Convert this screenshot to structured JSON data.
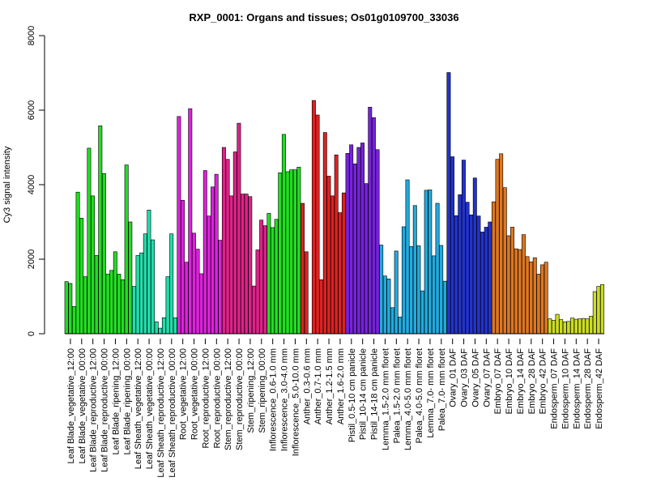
{
  "chart_data": {
    "type": "bar",
    "title": "RXP_0001: Organs and tissues; Os01g0109700_33036",
    "xlabel": "",
    "ylabel": "Cy3 signal intensity",
    "ylim": [
      0,
      8000
    ],
    "yticks": [
      0,
      2000,
      4000,
      6000,
      8000
    ],
    "grid": false,
    "legend": "none",
    "groups": [
      {
        "label": "Leaf Blade_vegetative_12:00",
        "color": "#22dd22",
        "values": [
          1400,
          1350,
          730
        ]
      },
      {
        "label": "Leaf Blade_vegetative_00:00",
        "color": "#22dd22",
        "values": [
          3800,
          3100,
          1530
        ]
      },
      {
        "label": "Leaf Blade_reproductive_12:00",
        "color": "#22dd22",
        "values": [
          4980,
          3700,
          2100
        ]
      },
      {
        "label": "Leaf Blade_reproductive_00:00",
        "color": "#22dd22",
        "values": [
          5580,
          4300,
          1600
        ]
      },
      {
        "label": "Leaf Blade_ripening_12:00",
        "color": "#22dd22",
        "values": [
          1700,
          2200,
          1600
        ]
      },
      {
        "label": "Leaf Blade_ripening_00:00",
        "color": "#22dd22",
        "values": [
          1450,
          4530,
          3000
        ]
      },
      {
        "label": "Leaf Sheath_vegetative_12:00",
        "color": "#22ddaa",
        "values": [
          1270,
          2100,
          2170
        ]
      },
      {
        "label": "Leaf Sheath_vegetative_00:00",
        "color": "#22ddaa",
        "values": [
          2680,
          3320,
          2520
        ]
      },
      {
        "label": "Leaf Sheath_reproductive_12:00",
        "color": "#22ddaa",
        "values": [
          320,
          150,
          430
        ]
      },
      {
        "label": "Leaf Sheath_reproductive_00:00",
        "color": "#22ddaa",
        "values": [
          1530,
          2680,
          430
        ]
      },
      {
        "label": "Root_vegetative_12:00",
        "color": "#dd22dd",
        "values": [
          5830,
          3580,
          1920
        ]
      },
      {
        "label": "Root_vegetative_00:00",
        "color": "#dd22dd",
        "values": [
          6040,
          2700,
          2270
        ]
      },
      {
        "label": "Root_reproductive_12:00",
        "color": "#dd22dd",
        "values": [
          1610,
          4380,
          3160
        ]
      },
      {
        "label": "Root_reproductive_00:00",
        "color": "#dd22dd",
        "values": [
          3940,
          4280,
          2510
        ]
      },
      {
        "label": "Stem_reproductive_12:00",
        "color": "#dd2288",
        "values": [
          5000,
          4680,
          3700
        ]
      },
      {
        "label": "Stem_reproductive_00:00",
        "color": "#dd2288",
        "values": [
          4880,
          5650,
          3750
        ]
      },
      {
        "label": "Stem_ripening_12:00",
        "color": "#dd2288",
        "values": [
          3750,
          3680,
          1280
        ]
      },
      {
        "label": "Stem_ripening_00:00",
        "color": "#dd2288",
        "values": [
          2250,
          3050,
          2900
        ]
      },
      {
        "label": "Inflorescence_0.6-1.0 mm",
        "color": "#22dd22",
        "values": [
          3230,
          2850,
          3070
        ]
      },
      {
        "label": "Inflorescence_3.0-4.0 mm",
        "color": "#22dd22",
        "values": [
          4320,
          5350,
          4350
        ]
      },
      {
        "label": "Inflorescence_5.0-10.0 mm",
        "color": "#22dd22",
        "values": [
          4400,
          4400,
          4470
        ]
      },
      {
        "label": "Anther_0.3-0.6 mm",
        "color": "#dd2222",
        "values": [
          3500,
          2200
        ]
      },
      {
        "label": "Anther_0.7-1.0 mm",
        "color": "#dd2222",
        "values": [
          6260,
          5870,
          1450
        ]
      },
      {
        "label": "Anther_1.2-1.5 mm",
        "color": "#dd2222",
        "values": [
          5400,
          4230,
          3700
        ]
      },
      {
        "label": "Anther_1.6-2.0 mm",
        "color": "#dd2222",
        "values": [
          4800,
          3250,
          3780
        ]
      },
      {
        "label": "Pistil_0.5-10 cm panicle",
        "color": "#7722dd",
        "values": [
          4840,
          5070,
          4560
        ]
      },
      {
        "label": "Pistil_10-14 cm panicle",
        "color": "#7722dd",
        "values": [
          5000,
          5120,
          4030
        ]
      },
      {
        "label": "Pistil_14-18 cm panicle",
        "color": "#7722dd",
        "values": [
          6080,
          5800,
          4940
        ]
      },
      {
        "label": "Lemma_1.5-2.0 mm floret",
        "color": "#22aadd",
        "values": [
          2380,
          1550,
          1470
        ]
      },
      {
        "label": "Palea_1.5-2.0 mm floret",
        "color": "#22aadd",
        "values": [
          700,
          2220,
          450
        ]
      },
      {
        "label": "Lemma_4.0-5.0 mm floret",
        "color": "#22aadd",
        "values": [
          2870,
          4130,
          2340
        ]
      },
      {
        "label": "Palea_4.0-5.0 mm floret",
        "color": "#22aadd",
        "values": [
          3440,
          2360,
          1150
        ]
      },
      {
        "label": "Lemma_7.0- mm floret",
        "color": "#22aadd",
        "values": [
          3850,
          3860,
          2090
        ]
      },
      {
        "label": "Palea_7.0- mm floret",
        "color": "#22aadd",
        "values": [
          3500,
          2370,
          1410
        ]
      },
      {
        "label": "Ovary_01 DAF",
        "color": "#2233cc",
        "values": [
          7010,
          4750,
          3170
        ]
      },
      {
        "label": "Ovary_03 DAF",
        "color": "#2233cc",
        "values": [
          3730,
          4660,
          3530
        ]
      },
      {
        "label": "Ovary_05 DAF",
        "color": "#2233cc",
        "values": [
          3190,
          4180,
          3160
        ]
      },
      {
        "label": "Ovary_07 DAF",
        "color": "#2233cc",
        "values": [
          2730,
          2860,
          3000
        ]
      },
      {
        "label": "Embryo_07 DAF",
        "color": "#dd7722",
        "values": [
          3540,
          4680,
          4830
        ]
      },
      {
        "label": "Embryo_10 DAF",
        "color": "#dd7722",
        "values": [
          3920,
          2630,
          2860
        ]
      },
      {
        "label": "Embryo_14 DAF",
        "color": "#dd7722",
        "values": [
          2280,
          2260,
          2660
        ]
      },
      {
        "label": "Embryo_28 DAF",
        "color": "#dd7722",
        "values": [
          2070,
          1930,
          2040
        ]
      },
      {
        "label": "Embryo_42 DAF",
        "color": "#dd7722",
        "values": [
          1600,
          1850,
          1920
        ]
      },
      {
        "label": "Endosperm_07 DAF",
        "color": "#ccdd22",
        "values": [
          400,
          360,
          520
        ]
      },
      {
        "label": "Endosperm_10 DAF",
        "color": "#ccdd22",
        "values": [
          380,
          320,
          330
        ]
      },
      {
        "label": "Endosperm_14 DAF",
        "color": "#ccdd22",
        "values": [
          420,
          390,
          400
        ]
      },
      {
        "label": "Endosperm_28 DAF",
        "color": "#ccdd22",
        "values": [
          410,
          400,
          470
        ]
      },
      {
        "label": "Endosperm_42 DAF",
        "color": "#ccdd22",
        "values": [
          1130,
          1270,
          1320
        ]
      }
    ]
  }
}
